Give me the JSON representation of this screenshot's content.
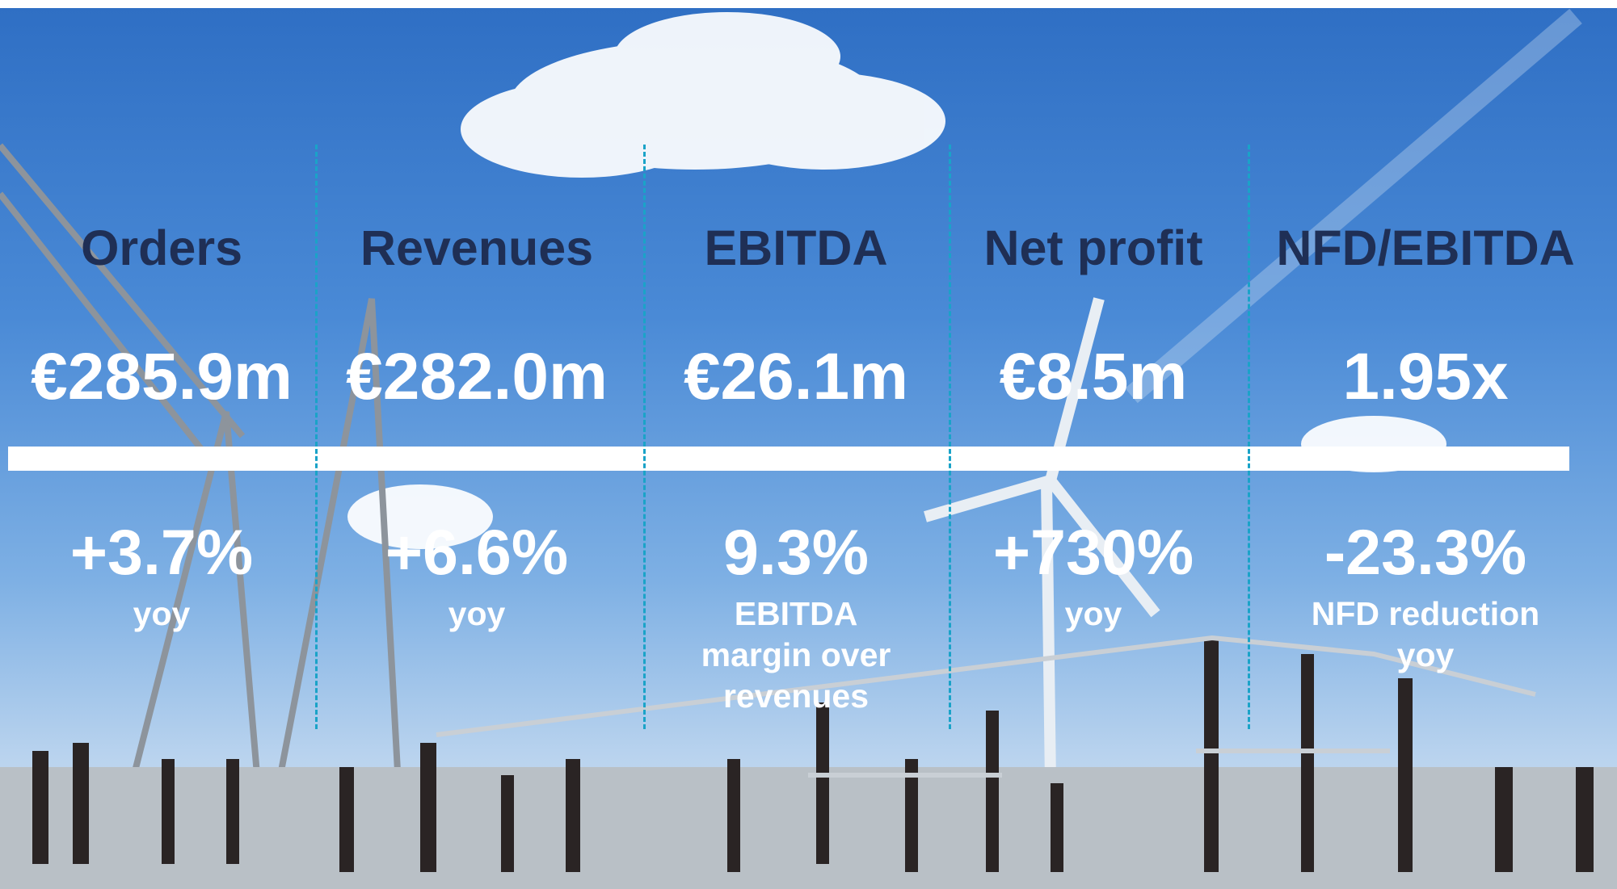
{
  "columns": [
    {
      "title": "Orders",
      "value": "€285.9m",
      "change": "+3.7%",
      "note": "yoy"
    },
    {
      "title": "Revenues",
      "value": "€282.0m",
      "change": "+6.6%",
      "note": "yoy"
    },
    {
      "title": "EBITDA",
      "value": "€26.1m",
      "change": "9.3%",
      "note": "EBITDA margin over revenues"
    },
    {
      "title": "Net profit",
      "value": "€8.5m",
      "change": "+730%",
      "note": "yoy"
    },
    {
      "title": "NFD/EBITDA",
      "value": "1.95x",
      "change": "-23.3%",
      "note": "NFD reduction yoy"
    }
  ]
}
